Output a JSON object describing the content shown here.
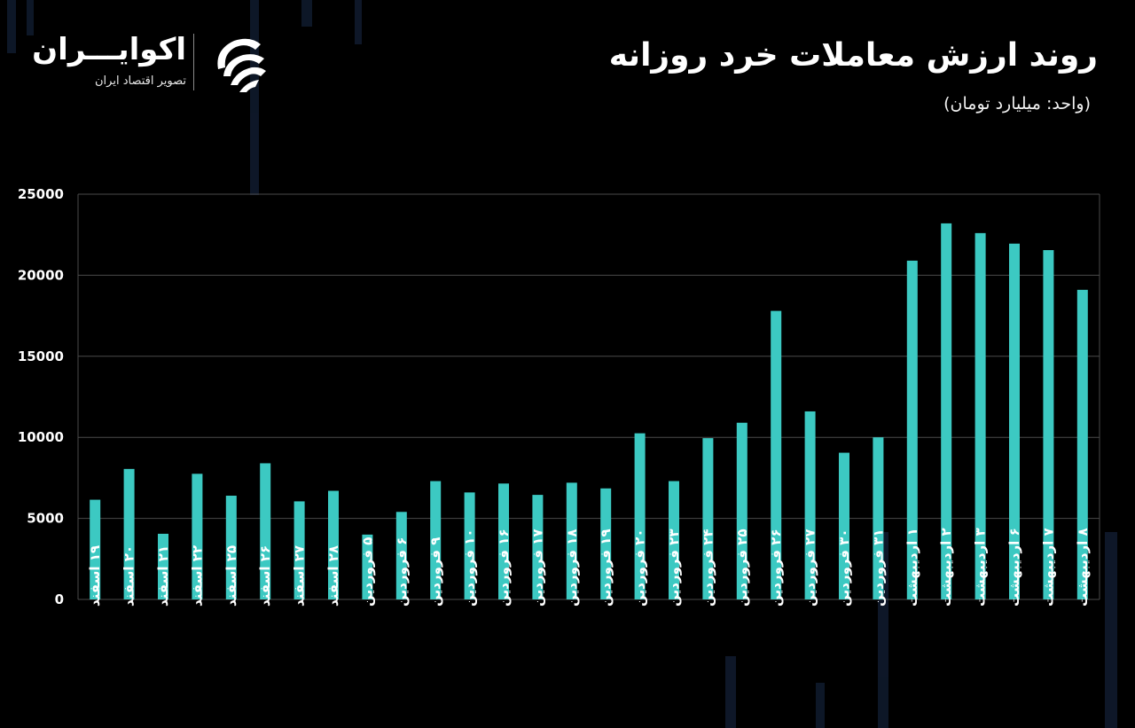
{
  "header": {
    "title": "روند ارزش معاملات خرد روزانه",
    "subtitle": "(واحد: میلیارد تومان)"
  },
  "brand": {
    "name": "اکوایـــران",
    "tagline": "تصویر اقتصاد ایران",
    "logo_icon": "ecoiran-swirl-logo"
  },
  "colors": {
    "background": "#000000",
    "bar": "#3cc9c2",
    "grid": "#4a4a4a",
    "text": "#ffffff"
  },
  "chart_data": {
    "type": "bar",
    "title": "روند ارزش معاملات خرد روزانه",
    "subtitle": "(واحد: میلیارد تومان)",
    "xlabel": "",
    "ylabel": "",
    "ylim": [
      0,
      25000
    ],
    "yticks": [
      0,
      5000,
      10000,
      15000,
      20000,
      25000
    ],
    "ytick_labels": [
      "0",
      "5000",
      "10000",
      "15000",
      "20000",
      "25000"
    ],
    "grid": true,
    "legend": "none",
    "categories": [
      "۱۹ اسفند",
      "۲۰ اسفند",
      "۲۱ اسفند",
      "۲۲ اسفند",
      "۲۵ اسفند",
      "۲۶ اسفند",
      "۲۷ اسفند",
      "۲۸ اسفند",
      "۵ فروردین",
      "۶ فروردین",
      "۹ فروردین",
      "۱۰ فروردین",
      "۱۶ فروردین",
      "۱۷ فروردین",
      "۱۸ فروردین",
      "۱۹ فروردین",
      "۲۰ فروردین",
      "۲۳ فروردین",
      "۲۴ فروردین",
      "۲۵ فروردین",
      "۲۶ فروردین",
      "۲۷ فروردین",
      "۳۰ فروردین",
      "۳۱ فروردین",
      "۱ اردیبهشت",
      "۲ اردیبهشت",
      "۳ اردیبهشت",
      "۶ اردیبهشت",
      "۷ اردیبهشت",
      "۸ اردیبهشت"
    ],
    "values": [
      6150,
      8050,
      4050,
      7750,
      6400,
      8400,
      6050,
      6700,
      4000,
      5400,
      7300,
      6600,
      7150,
      6450,
      7200,
      6850,
      10250,
      7300,
      9950,
      10900,
      17800,
      11600,
      9050,
      10000,
      20900,
      23200,
      22600,
      21950,
      21550,
      19100
    ]
  }
}
